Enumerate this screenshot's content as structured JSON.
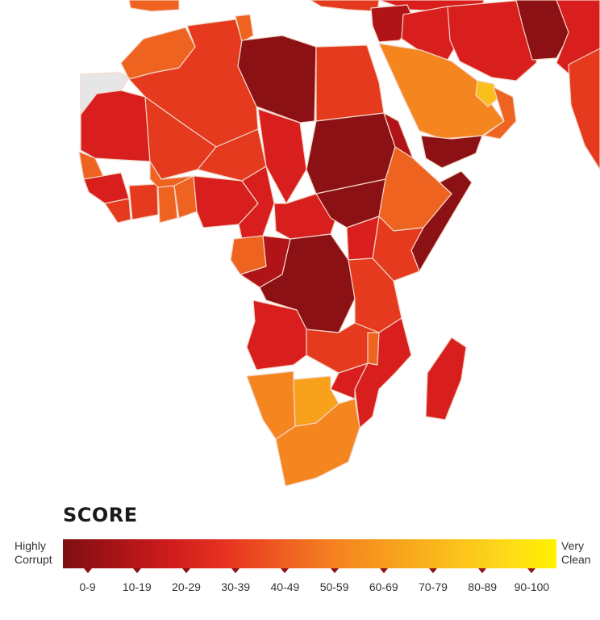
{
  "map": {
    "colors": {
      "0-9": "#8c1115",
      "10-19": "#b01418",
      "20-29": "#d81f1e",
      "30-39": "#e53a1d",
      "40-49": "#ef6321",
      "50-59": "#f5851f",
      "60-69": "#f8a11c",
      "70-79": "#fbbf1d",
      "no-data": "#e6e6e6",
      "border": "#f3d6c8"
    }
  },
  "legend": {
    "title": "SCORE",
    "left_label": "Highly\nCorrupt",
    "right_label": "Very\nClean",
    "gradient": [
      "#7e0f12",
      "#a81417",
      "#d11c1e",
      "#e83420",
      "#ef5d22",
      "#f5831f",
      "#f8a01d",
      "#fbbc1c",
      "#fdd81a",
      "#fff200"
    ],
    "ranges": [
      "0-9",
      "10-19",
      "20-29",
      "30-39",
      "40-49",
      "50-59",
      "60-69",
      "70-79",
      "80-89",
      "90-100"
    ]
  }
}
